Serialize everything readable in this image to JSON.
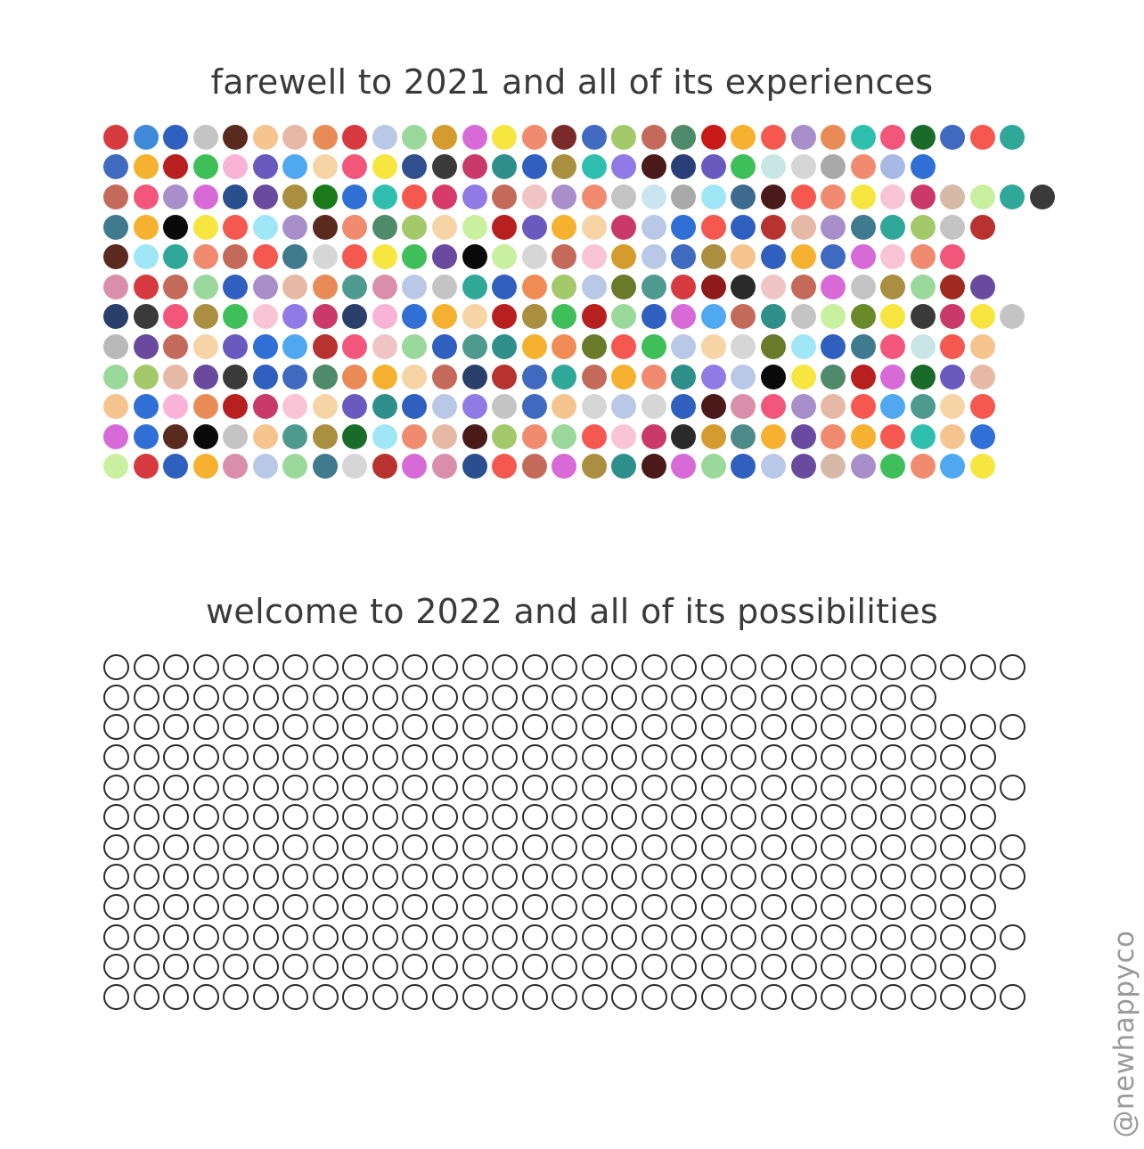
{
  "title_2021": "farewell to 2021 and all of its experiences",
  "title_2022": "welcome to 2022 and all of its possibilities",
  "watermark": "@newhappyco",
  "months_2022_days": [
    31,
    28,
    31,
    30,
    31,
    30,
    31,
    31,
    30,
    31,
    30,
    31
  ],
  "rows_2021": [
    [
      "#d63a3f",
      "#3f8ad8",
      "#2f5fbf",
      "#c4c4c4",
      "#5a2a1f",
      "#f6c48f",
      "#e6b9a6",
      "#e98b56",
      "#d63a3f",
      "#b9c8e6",
      "#9ad99b",
      "#d49b2f",
      "#d86ad8",
      "#f6e63f",
      "#f08b6f",
      "#7a2a2a",
      "#3f6abf",
      "#a3c96a",
      "#c46a5a",
      "#4f8a6a",
      "#c91a1a",
      "#f5b12f",
      "#f4584f",
      "#a98fc9",
      "#e98b56",
      "#2fbfae",
      "#f2567a",
      "#1a6b2a",
      "#3f6abf",
      "#f4584f",
      "#2fa89a"
    ],
    [
      "#3f6abf",
      "#f5b12f",
      "#b81f1f",
      "#3fbf5a",
      "#f8b3d6",
      "#6a5abf",
      "#4fa8f0",
      "#f6d4a6",
      "#f2567a",
      "#f6e63f",
      "#2f4f8f",
      "#3a3a3a",
      "#c93a6a",
      "#2f8f8a",
      "#2f5fbf",
      "#a98f3f",
      "#2fbfae",
      "#8f7ae6",
      "#4a1a1a",
      "#2a3f7a",
      "#6a5abf",
      "#3fbf5a",
      "#c9e6e6",
      "#d6d6d6",
      "#a9a9a9",
      "#f08b6f",
      "#a9b9e6",
      "#2f6fd6"
    ],
    [
      "#c46a5a",
      "#f2567a",
      "#a98fc9",
      "#d86ad8",
      "#2a4f8f",
      "#6a4a9f",
      "#a98f3f",
      "#1a7a1a",
      "#2f6fd6",
      "#2fbfae",
      "#f4584f",
      "#d63a6a",
      "#8f7ae6",
      "#c46a5a",
      "#f0c4c4",
      "#a98fc9",
      "#f08b6f",
      "#c4c4c4",
      "#c9e6f0",
      "#a9a9a9",
      "#9fe6f6",
      "#3f6a8f",
      "#4a1a1a",
      "#f4584f",
      "#f08b6f",
      "#f6e63f",
      "#f8c4d6",
      "#c93a6a",
      "#d6b9a6",
      "#c9f09f",
      "#2fa89a",
      "#3a3a3a"
    ],
    [
      "#3f7a8f",
      "#f5b12f",
      "#0a0a0a",
      "#f6e63f",
      "#f4584f",
      "#9fe6f6",
      "#a98fc9",
      "#5a2a1f",
      "#f08b6f",
      "#4f8a6a",
      "#a3c96a",
      "#f6d4a6",
      "#c9f09f",
      "#b81f1f",
      "#6a5abf",
      "#f5b12f",
      "#f6d4a6",
      "#c93a6a",
      "#b9c8e6",
      "#2f6fd6",
      "#f4584f",
      "#2f5fbf",
      "#b8322f",
      "#e6b9a6",
      "#a98fc9",
      "#3f7a8f",
      "#2fa89a",
      "#a3c96a",
      "#c4c4c4",
      "#b8322f"
    ],
    [
      "#5a2a1f",
      "#9fe6f6",
      "#2fa89a",
      "#f08b6f",
      "#c46a5a",
      "#f4584f",
      "#3f7a8f",
      "#d6d6d6",
      "#f4584f",
      "#f6e63f",
      "#3fbf5a",
      "#6a4a9f",
      "#0a0a0a",
      "#c9f09f",
      "#d6d6d6",
      "#c46a5a",
      "#f8c4d6",
      "#d49b2f",
      "#b9c8e6",
      "#3f6abf",
      "#a98f3f",
      "#f6c48f",
      "#2f5fbf",
      "#f5b12f",
      "#3f6abf",
      "#d86ad8",
      "#f8c4d6",
      "#f08b6f",
      "#f2567a"
    ],
    [
      "#d98fa9",
      "#d63a3f",
      "#c46a5a",
      "#9ad99b",
      "#2f5fbf",
      "#a98fc9",
      "#e6b9a6",
      "#e98b56",
      "#4f9a8f",
      "#d98fa9",
      "#b9c8e6",
      "#c4c4c4",
      "#2fa89a",
      "#2f5fbf",
      "#f08b56",
      "#a3c96a",
      "#b9c8e6",
      "#6a7a2a",
      "#4f9a8f",
      "#d63a3f",
      "#8f1a1a",
      "#2a2a2a",
      "#f0c4c4",
      "#c46a5a",
      "#d86ad8",
      "#c4c4c4",
      "#a98f3f",
      "#9ad99b",
      "#9f2a1f",
      "#6a4a9f"
    ],
    [
      "#2a3f6a",
      "#3a3a3a",
      "#f2567a",
      "#a98f3f",
      "#3fbf5a",
      "#f8c4d6",
      "#8f7ae6",
      "#c93a6a",
      "#2a3f6a",
      "#f8b3d6",
      "#2f6fd6",
      "#f5b12f",
      "#f6d4a6",
      "#b81f1f",
      "#a98f3f",
      "#3fbf5a",
      "#b81f1f",
      "#9ad99b",
      "#2f5fbf",
      "#d86ad8",
      "#4fa8f0",
      "#c46a5a",
      "#2f8f8a",
      "#c4c4c4",
      "#c9f09f",
      "#6a8a2a",
      "#f6e63f",
      "#3a3a3a",
      "#c93a6a",
      "#f6e63f",
      "#c4c4c4"
    ],
    [
      "#b9b9b9",
      "#6a4a9f",
      "#c46a5a",
      "#f6d4a6",
      "#6a5abf",
      "#2f6fd6",
      "#4fa8f0",
      "#b8322f",
      "#f2567a",
      "#f0c4c4",
      "#9ad99b",
      "#2f5fbf",
      "#4f9a8f",
      "#2f8f8a",
      "#f5b12f",
      "#f08b56",
      "#6a7a2a",
      "#f4584f",
      "#3fbf5a",
      "#b9c8e6",
      "#f6d4a6",
      "#d6d6d6",
      "#6a7a2a",
      "#9fe6f6",
      "#2f5fbf",
      "#3f7a8f",
      "#f2567a",
      "#c9e6e6",
      "#f4584f",
      "#f6c48f"
    ],
    [
      "#9ad99b",
      "#a3c96a",
      "#e6b9a6",
      "#6a4a9f",
      "#3a3a3a",
      "#2f5fbf",
      "#3f6abf",
      "#4f8a6a",
      "#e98b56",
      "#f5b12f",
      "#f6d4a6",
      "#c46a5a",
      "#2a3f6a",
      "#b8322f",
      "#3f6abf",
      "#2fa89a",
      "#c46a5a",
      "#f5b12f",
      "#f08b6f",
      "#2f8f8a",
      "#8f7ae6",
      "#b9c8e6",
      "#0a0a0a",
      "#f6e63f",
      "#4f8a6a",
      "#b81f1f",
      "#d86ad8",
      "#1a6b2a",
      "#6a5abf",
      "#e6b9a6"
    ],
    [
      "#f6c48f",
      "#2f6fd6",
      "#f8b3d6",
      "#e98b56",
      "#b81f1f",
      "#c93a6a",
      "#f8c4d6",
      "#f6d4a6",
      "#6a5abf",
      "#2f8f8a",
      "#2f5fbf",
      "#b9c8e6",
      "#8f7ae6",
      "#c4c4c4",
      "#3f6abf",
      "#f6c48f",
      "#d6d6d6",
      "#b9c8e6",
      "#d6d6d6",
      "#2f5fbf",
      "#4a1a1a",
      "#d98fa9",
      "#f2567a",
      "#a98fc9",
      "#e6b9a6",
      "#f4584f",
      "#4fa8f0",
      "#4f9a8f",
      "#f6d4a6",
      "#f4584f"
    ],
    [
      "#d86ad8",
      "#2f6fd6",
      "#5a2a1f",
      "#0a0a0a",
      "#c4c4c4",
      "#f6c48f",
      "#4f9a8f",
      "#a98f3f",
      "#1a6b2a",
      "#9fe6f6",
      "#f08b6f",
      "#e6b9a6",
      "#4a1a1a",
      "#a3c96a",
      "#f08b6f",
      "#9ad99b",
      "#f4584f",
      "#f8c4d6",
      "#c93a6a",
      "#2a2a2a",
      "#d49b2f",
      "#4f8a8a",
      "#f5b12f",
      "#6a4a9f",
      "#f08b6f",
      "#f5b12f",
      "#f4584f",
      "#2fbfae",
      "#f6c48f",
      "#2f6fd6"
    ],
    [
      "#c9f09f",
      "#d63a3f",
      "#2f5fbf",
      "#f5b12f",
      "#d98fa9",
      "#b9c8e6",
      "#9ad99b",
      "#3f7a8f",
      "#d6d6d6",
      "#b8322f",
      "#d86ad8",
      "#d98fa9",
      "#2a4f8f",
      "#f4584f",
      "#c46a5a",
      "#d86ad8",
      "#a98f3f",
      "#2f8f8a",
      "#4a1a1a",
      "#d86ad8",
      "#9ad99b",
      "#2f5fbf",
      "#b9c8e6",
      "#6a4a9f",
      "#d6b9a6",
      "#a98fc9",
      "#3fbf5a",
      "#f08b6f",
      "#4fa8f0",
      "#f6e63f"
    ]
  ]
}
